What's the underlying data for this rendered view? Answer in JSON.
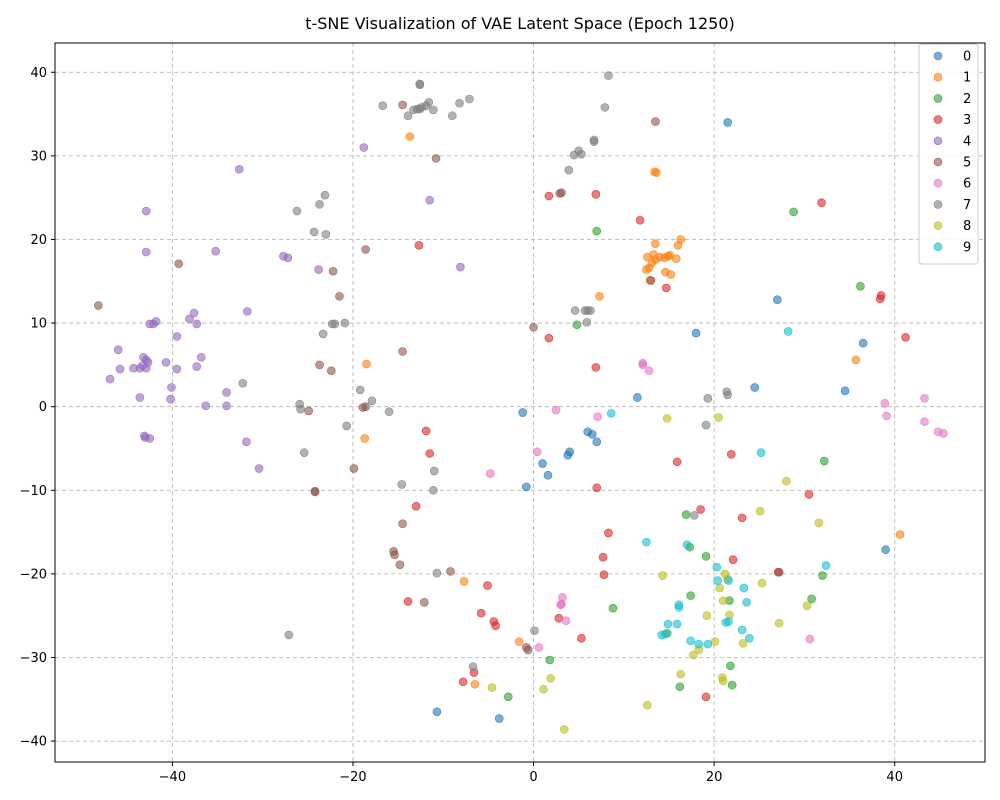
{
  "chart_data": {
    "type": "scatter",
    "title": "t-SNE Visualization of VAE Latent Space (Epoch 1250)",
    "xlabel": "",
    "ylabel": "",
    "xlim": [
      -53,
      50
    ],
    "ylim": [
      -42.5,
      43.5
    ],
    "xticks": [
      -40,
      -20,
      0,
      20,
      40
    ],
    "yticks": [
      -40,
      -30,
      -20,
      -10,
      0,
      10,
      20,
      30,
      40
    ],
    "grid": true,
    "legend_position": "top-right",
    "point_alpha": 0.6,
    "series": [
      {
        "name": "0",
        "color": "#1f77b4",
        "points": [
          [
            21.5,
            34
          ],
          [
            27,
            12.8
          ],
          [
            18,
            8.8
          ],
          [
            36.5,
            7.6
          ],
          [
            24.5,
            2.3
          ],
          [
            34.5,
            1.9
          ],
          [
            11.5,
            1.1
          ],
          [
            -1.2,
            -0.7
          ],
          [
            6,
            -3
          ],
          [
            6.5,
            -3.3
          ],
          [
            7,
            -4.2
          ],
          [
            4,
            -5.4
          ],
          [
            3.8,
            -5.8
          ],
          [
            1,
            -6.8
          ],
          [
            1.6,
            -8.2
          ],
          [
            -0.8,
            -9.6
          ],
          [
            39,
            -17.1
          ],
          [
            -10.7,
            -36.5
          ],
          [
            -3.8,
            -37.3
          ]
        ]
      },
      {
        "name": "1",
        "color": "#ff7f0e",
        "points": [
          [
            -13.7,
            32.3
          ],
          [
            13.4,
            28.1
          ],
          [
            13.6,
            28
          ],
          [
            16.3,
            20
          ],
          [
            13.5,
            19.5
          ],
          [
            16,
            19.3
          ],
          [
            13.3,
            18.2
          ],
          [
            15.1,
            18.1
          ],
          [
            14.9,
            18
          ],
          [
            14,
            17.9
          ],
          [
            12.6,
            17.9
          ],
          [
            14.5,
            17.8
          ],
          [
            13.5,
            17.6
          ],
          [
            15.8,
            17.7
          ],
          [
            13.1,
            17.2
          ],
          [
            12.8,
            16.6
          ],
          [
            12.5,
            16.4
          ],
          [
            14.6,
            16.1
          ],
          [
            15.2,
            15.8
          ],
          [
            12.9,
            15.1
          ],
          [
            7.3,
            13.2
          ],
          [
            35.7,
            5.6
          ],
          [
            -18.5,
            5.1
          ],
          [
            -18.7,
            -3.8
          ],
          [
            40.6,
            -15.3
          ],
          [
            -7.7,
            -20.9
          ],
          [
            -1.6,
            -28.1
          ],
          [
            -6.5,
            -33.2
          ]
        ]
      },
      {
        "name": "2",
        "color": "#2ca02c",
        "points": [
          [
            7,
            21
          ],
          [
            28.8,
            23.3
          ],
          [
            36.2,
            14.4
          ],
          [
            4.8,
            9.8
          ],
          [
            32.2,
            -6.5
          ],
          [
            16.9,
            -12.9
          ],
          [
            17.3,
            -16.8
          ],
          [
            19.1,
            -17.9
          ],
          [
            32,
            -20.2
          ],
          [
            17.4,
            -22.6
          ],
          [
            21.7,
            -23.2
          ],
          [
            30.8,
            -23
          ],
          [
            8.8,
            -24.1
          ],
          [
            14.8,
            -27.1
          ],
          [
            21.8,
            -31
          ],
          [
            1.8,
            -30.3
          ],
          [
            16.2,
            -33.5
          ],
          [
            22,
            -33.3
          ],
          [
            -2.8,
            -34.7
          ]
        ]
      },
      {
        "name": "3",
        "color": "#d62728",
        "points": [
          [
            1.7,
            25.2
          ],
          [
            6.9,
            25.4
          ],
          [
            31.9,
            24.4
          ],
          [
            11.8,
            22.3
          ],
          [
            -12.7,
            19.3
          ],
          [
            38.5,
            13.3
          ],
          [
            38.4,
            12.9
          ],
          [
            14.7,
            14.2
          ],
          [
            41.2,
            8.3
          ],
          [
            1.7,
            8.2
          ],
          [
            6.9,
            4.7
          ],
          [
            -11.9,
            -2.9
          ],
          [
            -11.5,
            -5.6
          ],
          [
            21.9,
            -5.7
          ],
          [
            15.9,
            -6.6
          ],
          [
            7,
            -9.7
          ],
          [
            30.5,
            -10.5
          ],
          [
            -13,
            -11.9
          ],
          [
            18.5,
            -12.3
          ],
          [
            23.1,
            -13.3
          ],
          [
            8.3,
            -15.1
          ],
          [
            7.7,
            -18
          ],
          [
            22.1,
            -18.3
          ],
          [
            7.8,
            -20.1
          ],
          [
            27.1,
            -19.8
          ],
          [
            -5.1,
            -21.4
          ],
          [
            -13.9,
            -23.3
          ],
          [
            -5.8,
            -24.7
          ],
          [
            2.8,
            -25.3
          ],
          [
            -4.4,
            -25.7
          ],
          [
            -4.2,
            -26.2
          ],
          [
            5.3,
            -27.7
          ],
          [
            -6.6,
            -31.8
          ],
          [
            -7.8,
            -32.9
          ],
          [
            19.1,
            -34.7
          ]
        ]
      },
      {
        "name": "4",
        "color": "#9467bd",
        "points": [
          [
            -18.8,
            31
          ],
          [
            -32.6,
            28.4
          ],
          [
            -42.9,
            23.4
          ],
          [
            -11.5,
            24.7
          ],
          [
            -42.9,
            18.5
          ],
          [
            -35.2,
            18.6
          ],
          [
            -27.7,
            18
          ],
          [
            -27.2,
            17.8
          ],
          [
            -23.8,
            16.4
          ],
          [
            -8.1,
            16.7
          ],
          [
            -31.7,
            11.4
          ],
          [
            -37.6,
            11.2
          ],
          [
            -38.1,
            10.5
          ],
          [
            -41.8,
            10.2
          ],
          [
            -37.3,
            9.9
          ],
          [
            -42.5,
            9.9
          ],
          [
            -42.1,
            9.9
          ],
          [
            -39.5,
            8.4
          ],
          [
            -46,
            6.8
          ],
          [
            -36.8,
            5.9
          ],
          [
            -43.2,
            5.9
          ],
          [
            -42.9,
            5.6
          ],
          [
            -40.7,
            5.3
          ],
          [
            -42.7,
            5.3
          ],
          [
            -43.3,
            4.9
          ],
          [
            -44.3,
            4.6
          ],
          [
            -43.6,
            4.6
          ],
          [
            -42.9,
            4.6
          ],
          [
            -45.8,
            4.5
          ],
          [
            -39.5,
            4.5
          ],
          [
            -37.3,
            4.8
          ],
          [
            -46.9,
            3.3
          ],
          [
            -40.1,
            2.3
          ],
          [
            -34,
            1.7
          ],
          [
            -43.6,
            1.1
          ],
          [
            -40.2,
            0.9
          ],
          [
            -36.3,
            0.1
          ],
          [
            -34,
            0.1
          ],
          [
            -43.1,
            -3.5
          ],
          [
            -43,
            -3.7
          ],
          [
            -42.5,
            -3.8
          ],
          [
            -31.8,
            -4.2
          ],
          [
            -30.4,
            -7.4
          ]
        ]
      },
      {
        "name": "5",
        "color": "#8c564b",
        "points": [
          [
            -14.5,
            36.1
          ],
          [
            13.5,
            34.1
          ],
          [
            -10.8,
            29.7
          ],
          [
            3.1,
            25.6
          ],
          [
            2.9,
            25.5
          ],
          [
            -18.6,
            18.8
          ],
          [
            -39.3,
            17.1
          ],
          [
            -22.2,
            16.2
          ],
          [
            13,
            15.1
          ],
          [
            -48.2,
            12.1
          ],
          [
            -21.5,
            13.2
          ],
          [
            0,
            9.5
          ],
          [
            -14.5,
            6.6
          ],
          [
            -23.7,
            5
          ],
          [
            -22.4,
            4.3
          ],
          [
            -18.6,
            0
          ],
          [
            -18.9,
            -0.1
          ],
          [
            -24.9,
            -0.5
          ],
          [
            -19.9,
            -7.4
          ],
          [
            -24.2,
            -10.1
          ],
          [
            -24.2,
            -10.2
          ],
          [
            -14.5,
            -14
          ],
          [
            -15.5,
            -17.3
          ],
          [
            -15.4,
            -17.7
          ],
          [
            -14.8,
            -18.9
          ],
          [
            -9.2,
            -19.7
          ],
          [
            -12.1,
            -23.4
          ],
          [
            27.2,
            -19.8
          ],
          [
            -0.8,
            -28.8
          ],
          [
            -0.6,
            -29.1
          ]
        ]
      },
      {
        "name": "6",
        "color": "#e377c2",
        "points": [
          [
            12.1,
            5.2
          ],
          [
            12.1,
            5
          ],
          [
            12.8,
            4.3
          ],
          [
            43.3,
            1
          ],
          [
            38.9,
            0.4
          ],
          [
            2.5,
            -0.4
          ],
          [
            39.1,
            -1.1
          ],
          [
            7.1,
            -1.2
          ],
          [
            43.3,
            -1.8
          ],
          [
            44.8,
            -3
          ],
          [
            45.4,
            -3.2
          ],
          [
            0.4,
            -5.4
          ],
          [
            -4.8,
            -8
          ],
          [
            3.2,
            -22.8
          ],
          [
            3.1,
            -23.6
          ],
          [
            3,
            -23.7
          ],
          [
            3.6,
            -25.6
          ],
          [
            30.6,
            -27.8
          ],
          [
            0.6,
            -28.8
          ]
        ]
      },
      {
        "name": "7",
        "color": "#7f7f7f",
        "points": [
          [
            8.3,
            39.6
          ],
          [
            -12.6,
            38.6
          ],
          [
            -12.6,
            38.5
          ],
          [
            -7.1,
            36.8
          ],
          [
            -16.7,
            36
          ],
          [
            -11.6,
            36.4
          ],
          [
            -11.9,
            36
          ],
          [
            -8.2,
            36.3
          ],
          [
            -11.1,
            35.5
          ],
          [
            -12.4,
            35.8
          ],
          [
            -12.6,
            35.6
          ],
          [
            -12.9,
            35.6
          ],
          [
            7.9,
            35.8
          ],
          [
            -13.3,
            35.5
          ],
          [
            -9,
            34.8
          ],
          [
            -13.9,
            34.8
          ],
          [
            6.7,
            31.9
          ],
          [
            6.7,
            31.7
          ],
          [
            5,
            30.6
          ],
          [
            4.5,
            30.1
          ],
          [
            5.3,
            30.2
          ],
          [
            3.9,
            28.3
          ],
          [
            -23.1,
            25.3
          ],
          [
            -26.2,
            23.4
          ],
          [
            -23.7,
            24.2
          ],
          [
            -24.3,
            20.9
          ],
          [
            -23,
            20.6
          ],
          [
            -22.3,
            9.9
          ],
          [
            -22,
            9.9
          ],
          [
            -20.9,
            10
          ],
          [
            -23.3,
            8.7
          ],
          [
            4.6,
            11.5
          ],
          [
            5.7,
            11.5
          ],
          [
            6,
            11.5
          ],
          [
            6.3,
            11.5
          ],
          [
            5.9,
            10.1
          ],
          [
            -32.2,
            2.8
          ],
          [
            -19.2,
            2
          ],
          [
            21.4,
            1.8
          ],
          [
            21.5,
            1.4
          ],
          [
            -17.9,
            0.7
          ],
          [
            19.3,
            1
          ],
          [
            -25.9,
            0.3
          ],
          [
            -25.8,
            -0.3
          ],
          [
            -16,
            -0.6
          ],
          [
            19.1,
            -2.2
          ],
          [
            -20.7,
            -2.3
          ],
          [
            -25.4,
            -5.5
          ],
          [
            -11,
            -7.7
          ],
          [
            -14.6,
            -9.3
          ],
          [
            -11.1,
            -10
          ],
          [
            17.8,
            -13
          ],
          [
            -10.7,
            -19.9
          ],
          [
            0.1,
            -26.8
          ],
          [
            -27.1,
            -27.3
          ],
          [
            -6.7,
            -31.1
          ]
        ]
      },
      {
        "name": "8",
        "color": "#bcbd22",
        "points": [
          [
            14.8,
            -1.4
          ],
          [
            20.5,
            -1.3
          ],
          [
            28,
            -8.9
          ],
          [
            25.1,
            -12.5
          ],
          [
            31.6,
            -13.9
          ],
          [
            14.3,
            -20.2
          ],
          [
            21.2,
            -20
          ],
          [
            21.5,
            -20.6
          ],
          [
            25.3,
            -21.1
          ],
          [
            20.6,
            -21.7
          ],
          [
            21,
            -23.2
          ],
          [
            21.7,
            -24.9
          ],
          [
            19.2,
            -25
          ],
          [
            27.2,
            -25.9
          ],
          [
            30.3,
            -23.8
          ],
          [
            20.1,
            -28.1
          ],
          [
            23.2,
            -28.3
          ],
          [
            18.3,
            -29.1
          ],
          [
            17.7,
            -29.7
          ],
          [
            16.3,
            -32
          ],
          [
            1.9,
            -32.5
          ],
          [
            20.9,
            -32.4
          ],
          [
            21,
            -32.8
          ],
          [
            -4.6,
            -33.6
          ],
          [
            1.1,
            -33.8
          ],
          [
            12.6,
            -35.7
          ],
          [
            3.4,
            -38.6
          ]
        ]
      },
      {
        "name": "9",
        "color": "#17becf",
        "points": [
          [
            28.2,
            9
          ],
          [
            8.6,
            -0.8
          ],
          [
            25.2,
            -5.5
          ],
          [
            12.5,
            -16.2
          ],
          [
            17,
            -16.5
          ],
          [
            20.3,
            -19.2
          ],
          [
            32.4,
            -19
          ],
          [
            20.4,
            -20.8
          ],
          [
            21.6,
            -20.8
          ],
          [
            23.3,
            -21.7
          ],
          [
            23.6,
            -23.4
          ],
          [
            21.6,
            -25.7
          ],
          [
            21.3,
            -25.8
          ],
          [
            14.9,
            -26
          ],
          [
            15.9,
            -26
          ],
          [
            23.1,
            -26.7
          ],
          [
            16.1,
            -24
          ],
          [
            16.1,
            -23.7
          ],
          [
            14.2,
            -27.3
          ],
          [
            14.6,
            -27.2
          ],
          [
            17.4,
            -28
          ],
          [
            23.9,
            -27.7
          ],
          [
            18.3,
            -28.4
          ],
          [
            19.3,
            -28.4
          ]
        ]
      }
    ]
  }
}
